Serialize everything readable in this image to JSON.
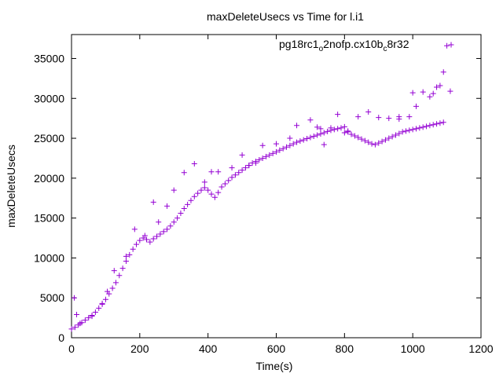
{
  "colors": {
    "series": "#9400d3",
    "axis": "#000000",
    "background": "#ffffff"
  },
  "chart_data": {
    "type": "scatter",
    "title": "maxDeleteUsecs vs Time for l.i1",
    "xlabel": "Time(s)",
    "ylabel": "maxDeleteUsecs",
    "xlim": [
      0,
      1200
    ],
    "ylim": [
      0,
      38000
    ],
    "xticks": [
      0,
      200,
      400,
      600,
      800,
      1000,
      1200
    ],
    "yticks": [
      0,
      5000,
      10000,
      15000,
      20000,
      25000,
      30000,
      35000
    ],
    "grid": false,
    "legend_position": "top-right",
    "legend": {
      "base": "pg18rc1",
      "sub1": "o",
      "mid": "2nofp.cx10b",
      "sub2": "c",
      "end": "8r32"
    },
    "marker": "plus",
    "series": [
      {
        "name": "pg18rc1_o2nofp.cx10b_c8r32",
        "x": [
          0,
          10,
          20,
          30,
          40,
          50,
          60,
          70,
          80,
          90,
          100,
          110,
          120,
          130,
          140,
          150,
          160,
          170,
          180,
          190,
          200,
          210,
          220,
          230,
          240,
          250,
          260,
          270,
          280,
          290,
          300,
          310,
          320,
          330,
          340,
          350,
          360,
          370,
          380,
          390,
          400,
          410,
          420,
          430,
          440,
          450,
          460,
          470,
          480,
          490,
          500,
          510,
          520,
          530,
          540,
          550,
          560,
          570,
          580,
          590,
          600,
          610,
          620,
          630,
          640,
          650,
          660,
          670,
          680,
          690,
          700,
          710,
          720,
          730,
          740,
          750,
          760,
          770,
          780,
          790,
          800,
          810,
          820,
          830,
          840,
          850,
          860,
          870,
          880,
          890,
          900,
          910,
          920,
          930,
          940,
          950,
          960,
          970,
          980,
          990,
          1000,
          1010,
          1020,
          1030,
          1040,
          1050,
          1060,
          1070,
          1080,
          1090,
          8,
          15,
          25,
          60,
          90,
          105,
          125,
          160,
          185,
          215,
          240,
          255,
          280,
          300,
          330,
          360,
          390,
          410,
          430,
          470,
          500,
          520,
          540,
          560,
          600,
          640,
          660,
          700,
          720,
          740,
          780,
          810,
          840,
          870,
          900,
          930,
          960,
          990,
          1010,
          1030,
          1050,
          1060,
          1080,
          1090,
          1100,
          1110,
          1070,
          1000,
          960,
          800,
          760,
          730
        ],
        "y": [
          1100,
          1300,
          1600,
          1900,
          2200,
          2500,
          2800,
          3200,
          3700,
          4200,
          4800,
          5500,
          6200,
          6900,
          7800,
          8700,
          9600,
          10400,
          11100,
          11700,
          12200,
          12500,
          12300,
          12000,
          12400,
          12700,
          13000,
          13300,
          13600,
          14000,
          14500,
          15000,
          15600,
          16200,
          16700,
          17200,
          17700,
          18100,
          18500,
          18800,
          18500,
          18000,
          17600,
          18200,
          18900,
          19300,
          19700,
          20100,
          20400,
          20700,
          21000,
          21300,
          21600,
          21900,
          22100,
          22300,
          22500,
          22700,
          22900,
          23100,
          23300,
          23500,
          23700,
          23900,
          24100,
          24300,
          24500,
          24650,
          24800,
          24950,
          25100,
          25250,
          25400,
          25550,
          25700,
          25850,
          26000,
          26100,
          26200,
          26300,
          26450,
          25800,
          25500,
          25300,
          25100,
          24900,
          24700,
          24500,
          24300,
          24200,
          24400,
          24600,
          24800,
          25000,
          25200,
          25400,
          25600,
          25800,
          25900,
          26000,
          26100,
          26200,
          26300,
          26400,
          26500,
          26600,
          26700,
          26800,
          26900,
          27000,
          5000,
          2900,
          1800,
          2700,
          4300,
          5800,
          8400,
          10200,
          13600,
          12800,
          17000,
          14500,
          16500,
          18500,
          20700,
          21800,
          19500,
          20800,
          20800,
          21300,
          22900,
          21600,
          21900,
          24100,
          24300,
          25000,
          26600,
          27300,
          26400,
          24200,
          28000,
          25900,
          27700,
          28300,
          27600,
          27500,
          27700,
          27700,
          29000,
          30800,
          30200,
          30600,
          31600,
          33300,
          36600,
          30900,
          31400,
          30700,
          27400,
          25700,
          26300,
          26200
        ]
      }
    ]
  }
}
